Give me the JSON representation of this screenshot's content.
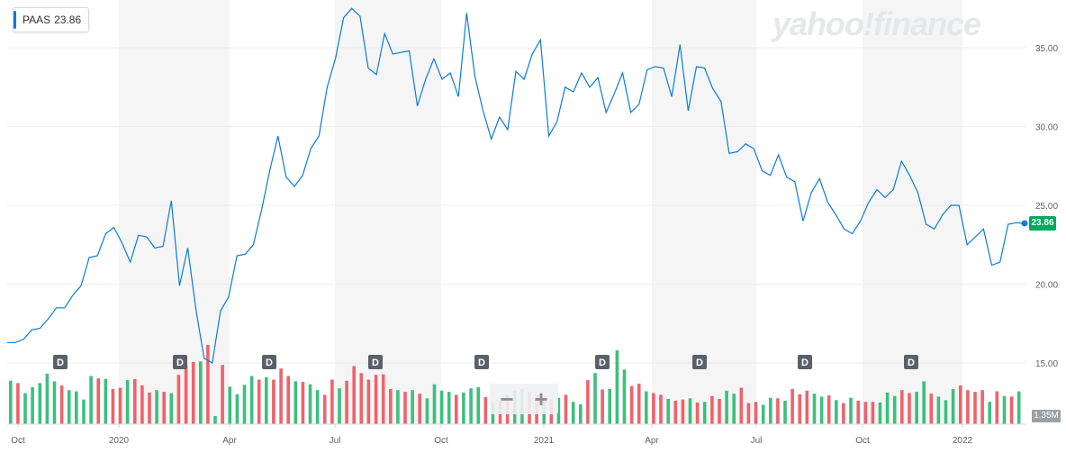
{
  "ticker": {
    "symbol": "PAAS",
    "last_price": "23.86",
    "accent": "#0a7cdb"
  },
  "brand": {
    "text": "yahoo!finance"
  },
  "zoom": {
    "minus_label": "−",
    "plus_label": "+"
  },
  "volume_scale_label": "1.35M",
  "last_price_label": "23.86",
  "chart_data": {
    "type": "line",
    "series": [
      {
        "values": [
          16.3,
          16.3,
          16.5,
          17.1,
          17.2,
          17.8,
          18.5,
          18.5,
          19.3,
          19.9,
          21.7,
          21.8,
          23.2,
          23.6,
          22.6,
          21.4,
          23.1,
          23.0,
          22.3,
          22.4,
          25.3,
          19.9,
          22.3,
          18.4,
          15.3,
          15.0,
          18.3,
          19.2,
          21.8,
          21.9,
          22.5,
          24.7,
          27.2,
          29.4,
          26.8,
          26.2,
          26.9,
          28.6,
          29.4,
          32.5,
          34.3,
          36.9,
          37.5,
          37.0,
          33.7,
          33.3,
          35.9,
          34.6,
          34.7,
          34.8,
          31.3,
          33.0,
          34.3,
          33.0,
          33.4,
          31.9,
          37.2,
          33.2,
          31.0,
          29.2,
          30.6,
          29.8,
          33.5,
          33.0,
          34.6,
          35.5,
          29.4,
          30.3,
          32.5,
          32.2,
          33.4,
          32.5,
          33.1,
          30.9,
          32.1,
          33.4,
          30.9,
          31.4,
          33.6,
          33.8,
          33.7,
          31.9,
          35.2,
          31.0,
          33.8,
          33.7,
          32.4,
          31.6,
          28.3,
          28.4,
          28.9,
          28.6,
          27.2,
          26.9,
          28.2,
          26.8,
          26.5,
          24.0,
          25.8,
          26.7,
          25.2,
          24.4,
          23.5,
          23.2,
          24.0,
          25.2,
          26.0,
          25.5,
          26.0,
          27.8,
          26.9,
          25.8,
          23.8,
          23.5,
          24.4,
          25.0,
          25.0,
          22.5,
          23.0,
          23.5,
          21.2,
          21.4,
          23.8,
          23.9,
          23.86
        ]
      }
    ],
    "volume": {
      "values": [
        0.74,
        0.7,
        0.53,
        0.63,
        0.7,
        0.86,
        0.73,
        0.66,
        0.58,
        0.56,
        0.42,
        0.82,
        0.78,
        0.77,
        0.6,
        0.62,
        0.75,
        0.77,
        0.66,
        0.54,
        0.58,
        0.55,
        0.53,
        0.84,
        1.0,
        1.06,
        1.07,
        1.35,
        0.14,
        1.01,
        0.64,
        0.51,
        0.67,
        0.82,
        0.76,
        0.8,
        0.76,
        0.95,
        0.82,
        0.73,
        0.72,
        0.68,
        0.58,
        0.5,
        0.76,
        0.61,
        0.74,
        0.99,
        0.87,
        0.76,
        0.84,
        0.85,
        0.6,
        0.58,
        0.55,
        0.58,
        0.52,
        0.44,
        0.68,
        0.57,
        0.55,
        0.5,
        0.54,
        0.61,
        0.63,
        0.46,
        0.37,
        0.4,
        0.5,
        0.57,
        0.6,
        0.55,
        0.5,
        0.38,
        0.42,
        0.45,
        0.5,
        0.38,
        0.34,
        0.75,
        0.87,
        0.59,
        0.6,
        1.26,
        0.93,
        0.65,
        0.69,
        0.56,
        0.53,
        0.5,
        0.43,
        0.4,
        0.42,
        0.44,
        0.37,
        0.38,
        0.48,
        0.43,
        0.57,
        0.52,
        0.62,
        0.36,
        0.38,
        0.33,
        0.45,
        0.44,
        0.4,
        0.6,
        0.51,
        0.57,
        0.52,
        0.47,
        0.49,
        0.41,
        0.36,
        0.45,
        0.4,
        0.38,
        0.38,
        0.37,
        0.54,
        0.48,
        0.58,
        0.53,
        0.55,
        0.73,
        0.52,
        0.47,
        0.41,
        0.6,
        0.66,
        0.58,
        0.55,
        0.58,
        0.38,
        0.56,
        0.48,
        0.47,
        0.56
      ],
      "up": [
        1,
        0,
        1,
        1,
        1,
        1,
        1,
        0,
        1,
        1,
        1,
        1,
        0,
        1,
        0,
        0,
        1,
        0,
        0,
        0,
        1,
        0,
        1,
        0,
        0,
        0,
        1,
        0,
        1,
        0,
        1,
        1,
        1,
        1,
        0,
        1,
        0,
        0,
        0,
        1,
        0,
        1,
        1,
        0,
        0,
        1,
        0,
        0,
        0,
        0,
        0,
        0,
        0,
        1,
        0,
        1,
        0,
        1,
        1,
        1,
        1,
        0,
        1,
        1,
        1,
        0,
        1,
        0,
        0,
        1,
        1,
        0,
        0,
        1,
        0,
        1,
        0,
        1,
        1,
        0,
        1,
        0,
        1,
        1,
        1,
        0,
        0,
        1,
        0,
        0,
        1,
        0,
        0,
        1,
        0,
        1,
        0,
        0,
        1,
        1,
        0,
        0,
        0,
        1,
        1,
        0,
        1,
        0,
        0,
        0,
        1,
        1,
        0,
        1,
        0,
        1,
        0,
        0,
        0,
        1,
        1,
        1,
        0,
        0,
        1,
        1,
        0,
        1,
        1,
        1,
        0,
        0,
        0,
        0,
        1,
        0,
        1,
        0,
        1
      ]
    },
    "dividend_marker": "D",
    "x_tick_labels": [
      "Oct",
      "2020",
      "Apr",
      "Jul",
      "Oct",
      "2021",
      "Apr",
      "Jul",
      "Oct",
      "2022"
    ],
    "y_tick_labels": [
      "35.00",
      "30.00",
      "25.00",
      "20.00",
      "15.00"
    ],
    "ylim": [
      12.5,
      38.2
    ],
    "grid": true,
    "colors": {
      "line": "#0a7cdb",
      "up_volume": "#3dbf7e",
      "down_volume": "#f0626a",
      "band": "#f5f5f5",
      "dividend": "#5b6068"
    }
  }
}
